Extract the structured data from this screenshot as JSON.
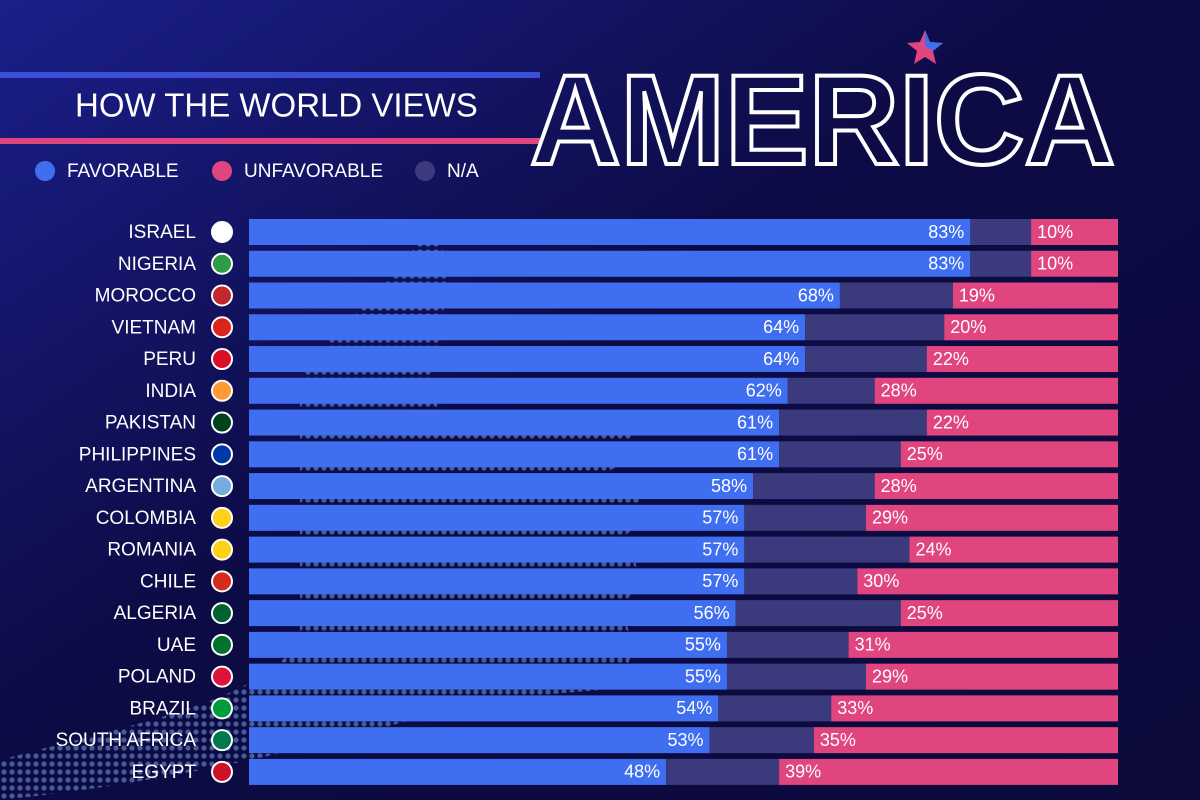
{
  "chart_data": {
    "type": "bar",
    "orientation": "horizontal",
    "stacked": true,
    "title": "HOW THE WORLD VIEWS",
    "title_emphasis": "AMERICA",
    "categories": [
      "ISRAEL",
      "NIGERIA",
      "MOROCCO",
      "VIETNAM",
      "PERU",
      "INDIA",
      "PAKISTAN",
      "PHILIPPINES",
      "ARGENTINA",
      "COLOMBIA",
      "ROMANIA",
      "CHILE",
      "ALGERIA",
      "UAE",
      "POLAND",
      "BRAZIL",
      "SOUTH AFRICA",
      "EGYPT"
    ],
    "series": [
      {
        "name": "FAVORABLE",
        "color": "#3f6ff0",
        "values": [
          83,
          83,
          68,
          64,
          64,
          62,
          61,
          61,
          58,
          57,
          57,
          57,
          56,
          55,
          55,
          54,
          53,
          48
        ],
        "value_labels": [
          "83%",
          "83%",
          "68%",
          "64%",
          "64%",
          "62%",
          "61%",
          "61%",
          "58%",
          "57%",
          "57%",
          "57%",
          "56%",
          "55%",
          "55%",
          "54%",
          "53%",
          "48%"
        ]
      },
      {
        "name": "N/A",
        "color": "#3b3a7c",
        "values": [
          7,
          7,
          13,
          16,
          14,
          10,
          17,
          14,
          14,
          14,
          19,
          13,
          19,
          14,
          16,
          13,
          12,
          13
        ]
      },
      {
        "name": "UNFAVORABLE",
        "color": "#e0457f",
        "values": [
          10,
          10,
          19,
          20,
          22,
          28,
          22,
          25,
          28,
          29,
          24,
          30,
          25,
          31,
          29,
          33,
          35,
          39
        ],
        "value_labels": [
          "10%",
          "10%",
          "19%",
          "20%",
          "22%",
          "28%",
          "22%",
          "25%",
          "28%",
          "29%",
          "24%",
          "30%",
          "25%",
          "31%",
          "29%",
          "33%",
          "35%",
          "39%"
        ]
      }
    ],
    "legend_order": [
      0,
      2,
      1
    ],
    "xlim": [
      0,
      100
    ]
  }
}
